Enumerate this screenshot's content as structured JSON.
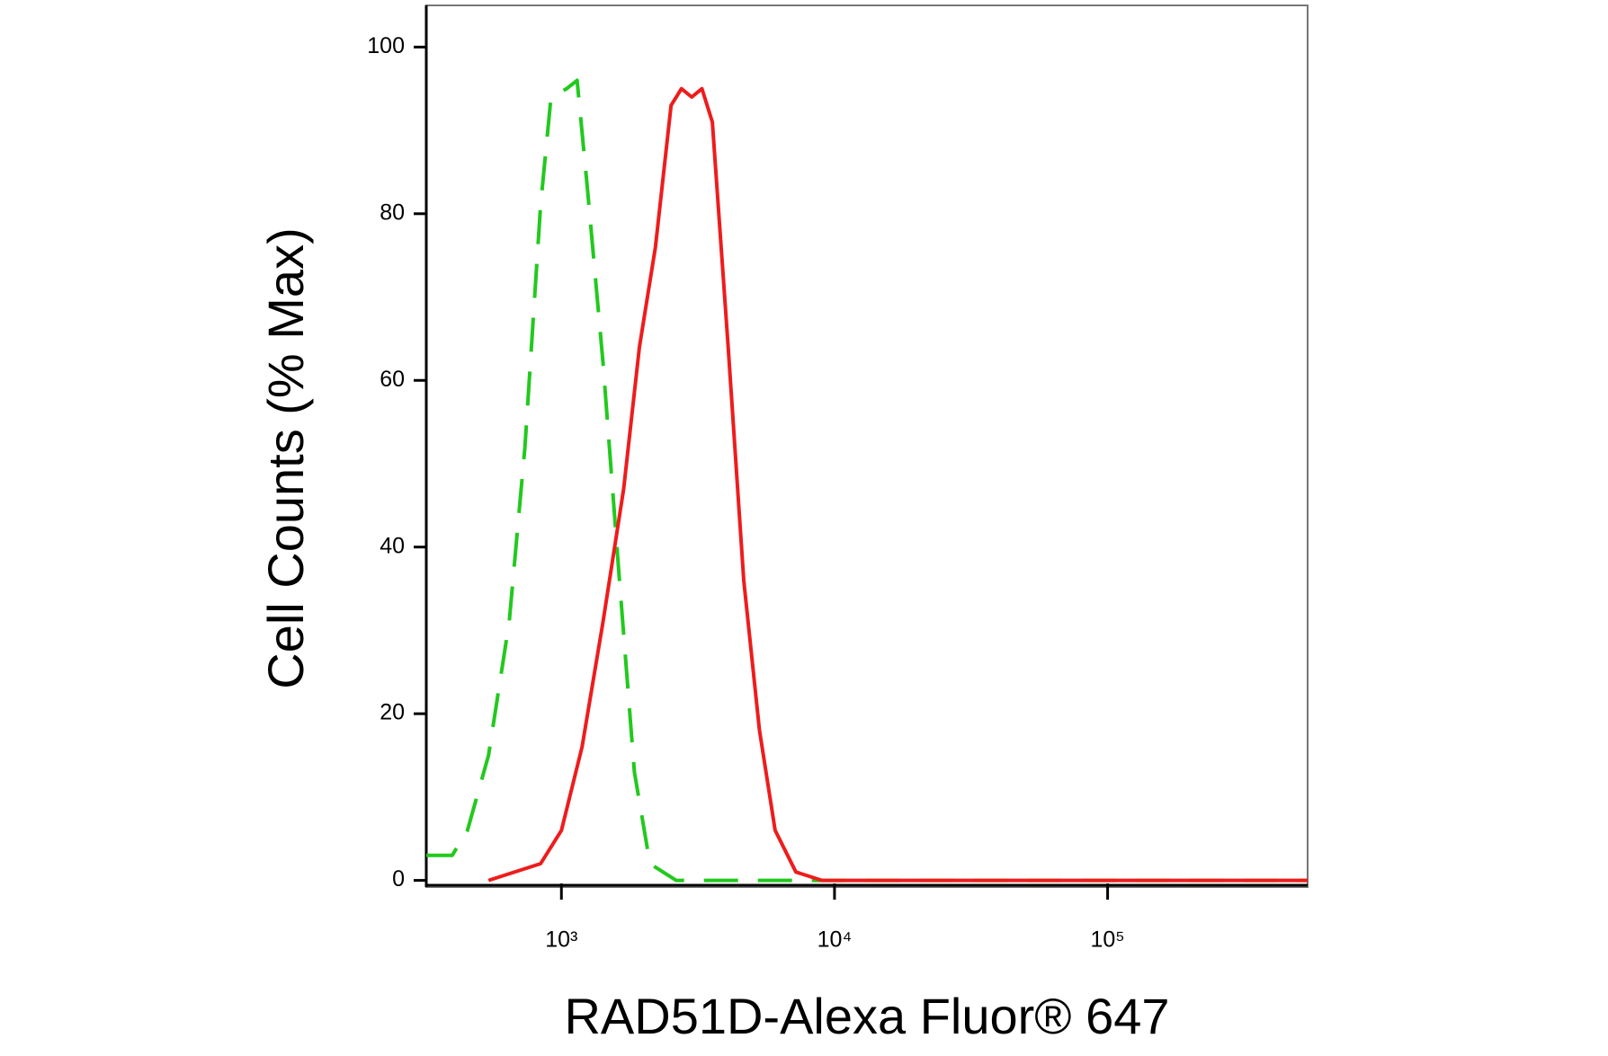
{
  "chart_data": {
    "type": "line",
    "xlabel": "RAD51D-Alexa Fluor® 647",
    "ylabel": "Cell Counts (% Max)",
    "xscale": "log",
    "xlim": [
      320,
      540000
    ],
    "ylim": [
      -0.8,
      105
    ],
    "xticks": [
      {
        "value": 1000,
        "label": "10³"
      },
      {
        "value": 10000,
        "label": "10⁴"
      },
      {
        "value": 100000,
        "label": "10⁵"
      }
    ],
    "yticks": [
      0,
      20,
      40,
      60,
      80,
      100
    ],
    "series": [
      {
        "color": "#22c91e",
        "dash": true,
        "x": [
          320,
          398,
          453,
          541,
          644,
          735,
          839,
          916,
          1045,
          1141,
          1245,
          1421,
          1622,
          1850,
          2110,
          2630,
          540000
        ],
        "values": [
          3,
          3,
          6,
          15,
          31,
          52,
          81,
          94,
          95,
          96,
          83,
          62,
          37,
          13,
          2,
          0,
          0
        ]
      },
      {
        "color": "#ee1c1c",
        "dash": false,
        "x": [
          541,
          839,
          1000,
          1190,
          1420,
          1690,
          1930,
          2210,
          2520,
          2750,
          3000,
          3270,
          3570,
          4080,
          4650,
          5310,
          6060,
          7220,
          9000,
          540000
        ],
        "values": [
          0,
          2,
          6,
          16,
          31,
          47,
          64,
          76,
          93,
          95,
          94,
          95,
          91,
          64,
          36,
          18,
          6,
          1,
          0,
          0
        ]
      }
    ]
  }
}
